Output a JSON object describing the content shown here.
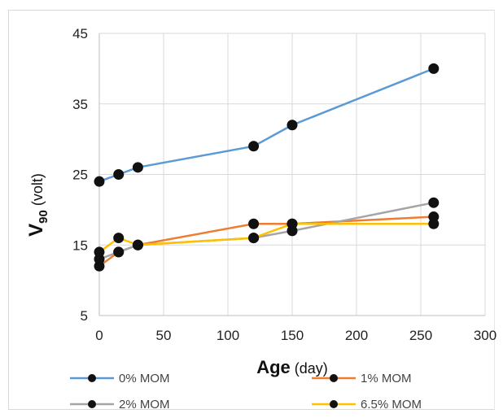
{
  "chart_data": {
    "type": "line",
    "xlabel": {
      "main": "Age",
      "unit": " (day)"
    },
    "ylabel": {
      "main": "V",
      "sub": "90",
      "unit": " (volt)"
    },
    "xlim": [
      0,
      300
    ],
    "ylim": [
      5,
      45
    ],
    "xticks": [
      "0",
      "50",
      "100",
      "150",
      "200",
      "250",
      "300"
    ],
    "yticks": [
      "5",
      "15",
      "25",
      "35",
      "45"
    ],
    "grid": true,
    "legend_position": "bottom",
    "series": [
      {
        "name": "0% MOM",
        "color": "#5b9bd5",
        "x": [
          0,
          15,
          30,
          120,
          150,
          260
        ],
        "y": [
          24,
          25,
          26,
          29,
          32,
          40
        ]
      },
      {
        "name": "1% MOM",
        "color": "#ed7d31",
        "x": [
          0,
          15,
          30,
          120,
          150,
          260
        ],
        "y": [
          12,
          14,
          15,
          18,
          18,
          19
        ]
      },
      {
        "name": "2% MOM",
        "color": "#a5a5a5",
        "x": [
          0,
          15,
          30,
          120,
          150,
          260
        ],
        "y": [
          13,
          14,
          15,
          16,
          17,
          21
        ]
      },
      {
        "name": "6.5% MOM",
        "color": "#ffc000",
        "x": [
          0,
          15,
          30,
          120,
          150,
          260
        ],
        "y": [
          14,
          16,
          15,
          16,
          18,
          18
        ]
      }
    ]
  }
}
